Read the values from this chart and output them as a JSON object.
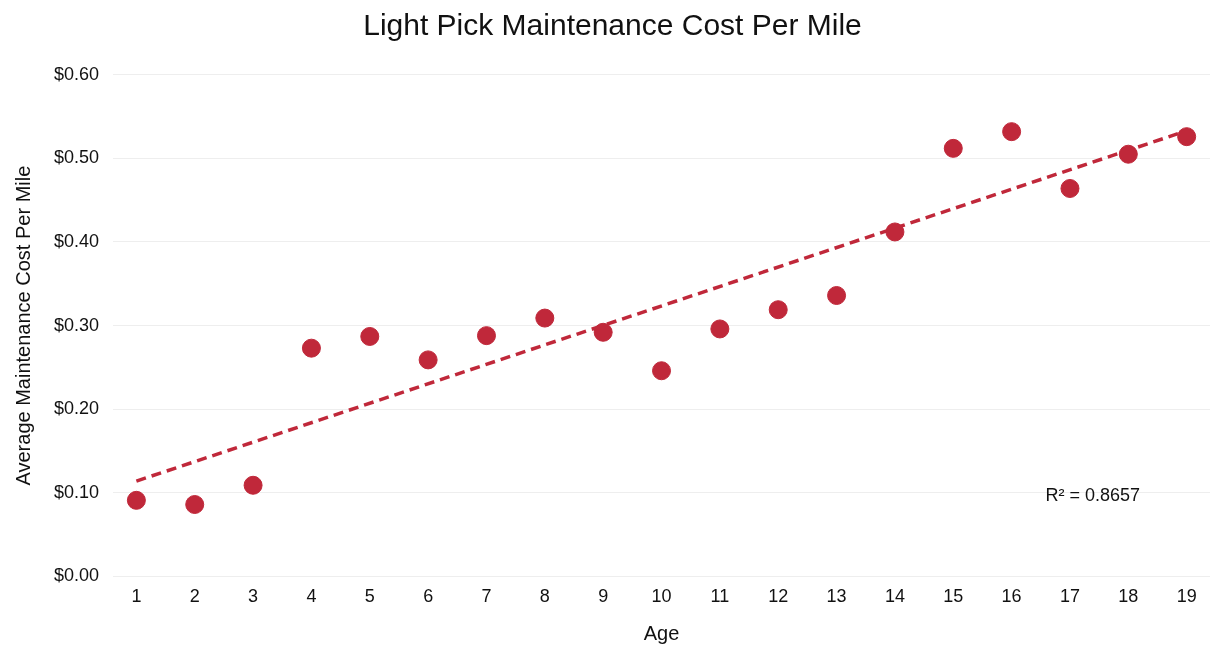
{
  "chart_data": {
    "type": "scatter",
    "title": "Light Pick Maintenance Cost Per Mile",
    "xlabel": "Age",
    "ylabel": "Average Maintenance Cost Per Mile",
    "x": [
      1,
      2,
      3,
      4,
      5,
      6,
      7,
      8,
      9,
      10,
      11,
      12,
      13,
      14,
      15,
      16,
      17,
      18,
      19
    ],
    "series": [
      {
        "color": "#c0283a",
        "marker": "circle",
        "values": [
          0.091,
          0.086,
          0.109,
          0.273,
          0.287,
          0.259,
          0.288,
          0.309,
          0.292,
          0.246,
          0.296,
          0.319,
          0.336,
          0.412,
          0.512,
          0.532,
          0.464,
          0.505,
          0.526
        ]
      },
      {
        "type": "line",
        "color": "#c0283a",
        "marker": "none",
        "line_style": "dashed",
        "x": [
          1,
          19
        ],
        "values": [
          0.114,
          0.533
        ]
      }
    ],
    "xlim": [
      0.6,
      19.4
    ],
    "xticks": [
      1,
      2,
      3,
      4,
      5,
      6,
      7,
      8,
      9,
      10,
      11,
      12,
      13,
      14,
      15,
      16,
      17,
      18,
      19
    ],
    "ylim": [
      0,
      0.6
    ],
    "yticks": [
      {
        "value": 0,
        "label": "$0.00"
      },
      {
        "value": 0.1,
        "label": "$0.10"
      },
      {
        "value": 0.2,
        "label": "$0.20"
      },
      {
        "value": 0.3,
        "label": "$0.30"
      },
      {
        "value": 0.4,
        "label": "$0.40"
      },
      {
        "value": 0.5,
        "label": "$0.50"
      },
      {
        "value": 0.6,
        "label": "$0.60"
      }
    ],
    "grid": "y",
    "legend": false,
    "annotations": [
      "R² = 0.8657"
    ]
  }
}
